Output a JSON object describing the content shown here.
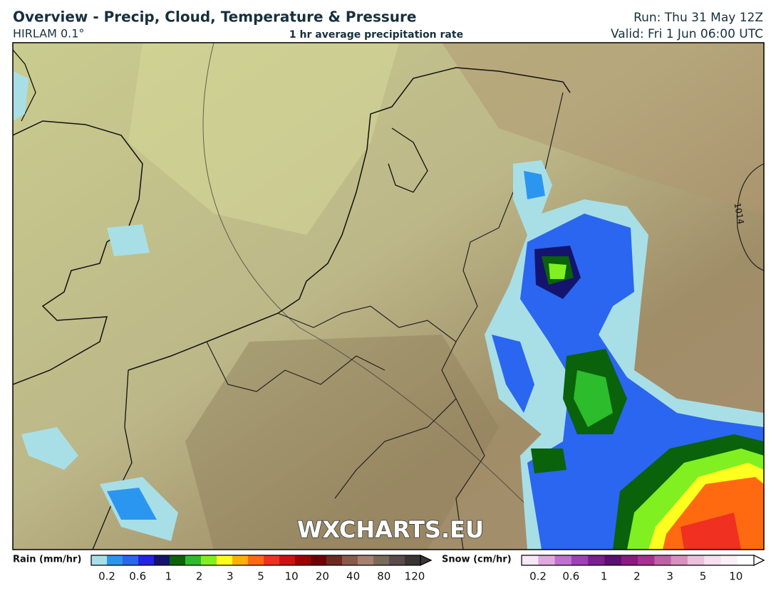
{
  "header": {
    "title": "Overview - Precip, Cloud, Temperature & Pressure",
    "model": "HIRLAM 0.1°",
    "subtitle": "1 hr average precipitation rate",
    "run": "Run: Thu 31 May 12Z",
    "valid": "Valid: Fri 1 Jun 06:00 UTC"
  },
  "map": {
    "watermark": "WXCHARTS.EU",
    "isobar_label": "1014"
  },
  "legend": {
    "rain": {
      "label": "Rain (mm/hr)",
      "ticks": [
        0.2,
        0.6,
        1,
        2,
        3,
        5,
        10,
        20,
        40,
        80,
        120
      ],
      "colors": [
        "#a8dfe6",
        "#2a96f0",
        "#2a66f0",
        "#2424e6",
        "#14146e",
        "#0a620a",
        "#2cbc2c",
        "#80f020",
        "#ffff20",
        "#ffb000",
        "#ff6a10",
        "#f03020",
        "#d01010",
        "#a00000",
        "#700000",
        "#6a2a20",
        "#8a5a48",
        "#a88070",
        "#7a6a5a",
        "#5a4a4a",
        "#3a3434"
      ]
    },
    "snow": {
      "label": "Snow (cm/hr)",
      "ticks": [
        0.2,
        0.6,
        1,
        2,
        3,
        5,
        10
      ],
      "colors": [
        "#f6e8f6",
        "#e0a8e0",
        "#c070d0",
        "#a040b8",
        "#7a2090",
        "#5a1070",
        "#8a1a80",
        "#a83090",
        "#c060a8",
        "#d890c0",
        "#ecc0dc",
        "#f6e0ee",
        "#fbf0f8",
        "#ffffff"
      ]
    }
  }
}
